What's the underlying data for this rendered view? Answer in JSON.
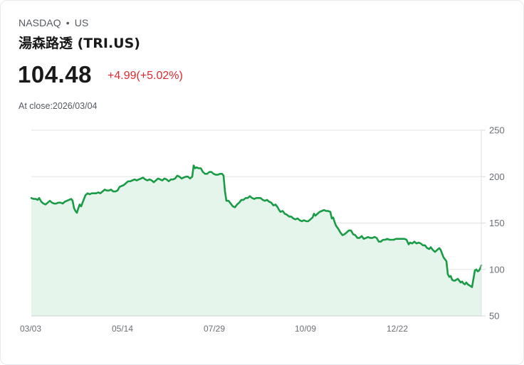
{
  "header": {
    "exchange": "NASDAQ",
    "separator": "•",
    "market": "US",
    "title": "湯森路透 (TRI.US)",
    "price": "104.48",
    "change": "+4.99(+5.02%)",
    "close_label": "At close:2026/03/04"
  },
  "colors": {
    "line": "#1a9c47",
    "fill": "#e6f5ec",
    "change": "#e0282f",
    "grid": "#e3e3e3"
  },
  "chart_data": {
    "type": "area",
    "title": "湯森路透 (TRI.US)",
    "xlabel": "",
    "ylabel": "",
    "ylim": [
      50,
      250
    ],
    "yticks": [
      250,
      200,
      150,
      100,
      50
    ],
    "xticks": [
      "03/03",
      "05/14",
      "07/29",
      "10/09",
      "12/22"
    ],
    "grid": true,
    "legend": "none",
    "last_value": 104.48,
    "series": [
      {
        "name": "TRI.US",
        "points": [
          [
            43,
            177
          ],
          [
            46,
            176
          ],
          [
            49,
            176
          ],
          [
            52,
            175
          ],
          [
            54,
            177
          ],
          [
            57,
            173
          ],
          [
            60,
            171
          ],
          [
            63,
            170
          ],
          [
            66,
            172
          ],
          [
            69,
            174
          ],
          [
            72,
            172
          ],
          [
            75,
            171
          ],
          [
            78,
            171
          ],
          [
            81,
            172
          ],
          [
            84,
            172
          ],
          [
            87,
            171
          ],
          [
            90,
            173
          ],
          [
            93,
            174
          ],
          [
            96,
            175
          ],
          [
            99,
            176
          ],
          [
            101,
            174
          ],
          [
            103,
            166
          ],
          [
            105,
            163
          ],
          [
            107,
            161
          ],
          [
            109,
            166
          ],
          [
            111,
            170
          ],
          [
            113,
            168
          ],
          [
            115,
            172
          ],
          [
            117,
            176
          ],
          [
            119,
            180
          ],
          [
            122,
            182
          ],
          [
            125,
            181
          ],
          [
            128,
            182
          ],
          [
            131,
            182
          ],
          [
            134,
            182
          ],
          [
            137,
            183
          ],
          [
            140,
            182
          ],
          [
            143,
            184
          ],
          [
            146,
            186
          ],
          [
            149,
            185
          ],
          [
            152,
            185
          ],
          [
            155,
            186
          ],
          [
            158,
            184
          ],
          [
            161,
            184
          ],
          [
            164,
            185
          ],
          [
            167,
            189
          ],
          [
            170,
            190
          ],
          [
            173,
            191
          ],
          [
            176,
            193
          ],
          [
            179,
            195
          ],
          [
            182,
            195
          ],
          [
            185,
            196
          ],
          [
            188,
            197
          ],
          [
            191,
            196
          ],
          [
            194,
            197
          ],
          [
            197,
            198
          ],
          [
            200,
            199
          ],
          [
            203,
            197
          ],
          [
            206,
            196
          ],
          [
            209,
            197
          ],
          [
            212,
            196
          ],
          [
            215,
            194
          ],
          [
            218,
            196
          ],
          [
            221,
            198
          ],
          [
            224,
            197
          ],
          [
            227,
            196
          ],
          [
            230,
            198
          ],
          [
            233,
            197
          ],
          [
            236,
            195
          ],
          [
            239,
            197
          ],
          [
            242,
            197
          ],
          [
            245,
            198
          ],
          [
            248,
            201
          ],
          [
            251,
            200
          ],
          [
            254,
            198
          ],
          [
            257,
            199
          ],
          [
            260,
            200
          ],
          [
            263,
            200
          ],
          [
            266,
            198
          ],
          [
            269,
            200
          ],
          [
            271,
            212
          ],
          [
            273,
            209
          ],
          [
            275,
            210
          ],
          [
            278,
            209
          ],
          [
            281,
            209
          ],
          [
            284,
            205
          ],
          [
            287,
            203
          ],
          [
            290,
            203
          ],
          [
            293,
            205
          ],
          [
            296,
            205
          ],
          [
            299,
            203
          ],
          [
            302,
            202
          ],
          [
            305,
            202
          ],
          [
            308,
            203
          ],
          [
            311,
            203
          ],
          [
            313,
            201
          ],
          [
            315,
            184
          ],
          [
            317,
            174
          ],
          [
            320,
            174
          ],
          [
            323,
            171
          ],
          [
            326,
            168
          ],
          [
            329,
            167
          ],
          [
            332,
            170
          ],
          [
            335,
            172
          ],
          [
            338,
            175
          ],
          [
            341,
            175
          ],
          [
            344,
            177
          ],
          [
            347,
            177
          ],
          [
            350,
            179
          ],
          [
            353,
            177
          ],
          [
            356,
            176
          ],
          [
            359,
            177
          ],
          [
            362,
            177
          ],
          [
            365,
            177
          ],
          [
            368,
            175
          ],
          [
            371,
            174
          ],
          [
            374,
            175
          ],
          [
            377,
            173
          ],
          [
            380,
            172
          ],
          [
            383,
            169
          ],
          [
            386,
            170
          ],
          [
            389,
            167
          ],
          [
            391,
            164
          ],
          [
            393,
            162
          ],
          [
            396,
            163
          ],
          [
            399,
            160
          ],
          [
            402,
            159
          ],
          [
            405,
            157
          ],
          [
            408,
            157
          ],
          [
            411,
            155
          ],
          [
            414,
            154
          ],
          [
            417,
            155
          ],
          [
            420,
            153
          ],
          [
            423,
            152
          ],
          [
            426,
            153
          ],
          [
            429,
            152
          ],
          [
            432,
            152
          ],
          [
            435,
            154
          ],
          [
            438,
            156
          ],
          [
            440,
            160
          ],
          [
            442,
            158
          ],
          [
            445,
            160
          ],
          [
            448,
            162
          ],
          [
            451,
            163
          ],
          [
            454,
            164
          ],
          [
            457,
            163
          ],
          [
            460,
            163
          ],
          [
            463,
            162
          ],
          [
            465,
            155
          ],
          [
            467,
            156
          ],
          [
            469,
            151
          ],
          [
            471,
            147
          ],
          [
            474,
            144
          ],
          [
            477,
            140
          ],
          [
            480,
            137
          ],
          [
            483,
            138
          ],
          [
            486,
            140
          ],
          [
            489,
            142
          ],
          [
            492,
            142
          ],
          [
            495,
            138
          ],
          [
            498,
            137
          ],
          [
            501,
            134
          ],
          [
            504,
            134
          ],
          [
            507,
            136
          ],
          [
            510,
            133
          ],
          [
            513,
            134
          ],
          [
            516,
            135
          ],
          [
            519,
            134
          ],
          [
            522,
            134
          ],
          [
            525,
            135
          ],
          [
            528,
            134
          ],
          [
            531,
            130
          ],
          [
            534,
            130
          ],
          [
            537,
            132
          ],
          [
            540,
            132
          ],
          [
            543,
            133
          ],
          [
            546,
            132
          ],
          [
            549,
            132
          ],
          [
            552,
            132
          ],
          [
            555,
            133
          ],
          [
            558,
            133
          ],
          [
            561,
            133
          ],
          [
            564,
            133
          ],
          [
            567,
            133
          ],
          [
            570,
            132
          ],
          [
            573,
            127
          ],
          [
            575,
            129
          ],
          [
            578,
            128
          ],
          [
            581,
            130
          ],
          [
            584,
            128
          ],
          [
            587,
            129
          ],
          [
            590,
            128
          ],
          [
            593,
            126
          ],
          [
            596,
            126
          ],
          [
            599,
            123
          ],
          [
            602,
            122
          ],
          [
            604,
            124
          ],
          [
            607,
            121
          ],
          [
            610,
            119
          ],
          [
            613,
            121
          ],
          [
            616,
            123
          ],
          [
            618,
            121
          ],
          [
            620,
            117
          ],
          [
            622,
            113
          ],
          [
            624,
            111
          ],
          [
            626,
            109
          ],
          [
            628,
            95
          ],
          [
            630,
            92
          ],
          [
            632,
            93
          ],
          [
            634,
            89
          ],
          [
            636,
            88
          ],
          [
            638,
            88
          ],
          [
            640,
            89
          ],
          [
            642,
            90
          ],
          [
            644,
            88
          ],
          [
            646,
            86
          ],
          [
            648,
            87
          ],
          [
            650,
            85
          ],
          [
            652,
            84
          ],
          [
            654,
            86
          ],
          [
            656,
            84
          ],
          [
            658,
            83
          ],
          [
            660,
            82
          ],
          [
            662,
            81
          ],
          [
            664,
            90
          ],
          [
            666,
            99
          ],
          [
            668,
            100
          ],
          [
            670,
            98
          ],
          [
            672,
            99
          ],
          [
            674,
            102
          ],
          [
            675,
            104.48
          ]
        ]
      }
    ]
  }
}
